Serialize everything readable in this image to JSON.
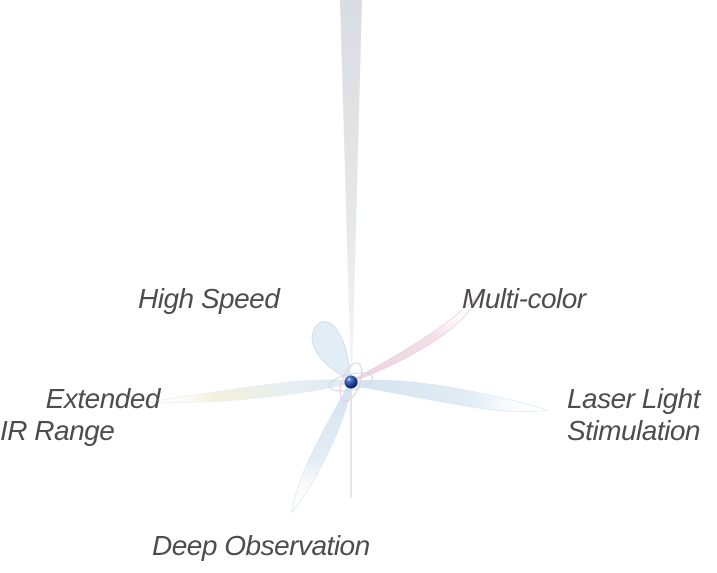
{
  "labels": {
    "high_speed": "High Speed",
    "multi_color": "Multi-color",
    "extended_ir_line1": "Extended",
    "extended_ir_line2": "IR Range",
    "laser_line1": "Laser Light",
    "laser_line2": "Stimulation",
    "deep_observation": "Deep Observation"
  },
  "colors": {
    "text": "#4d4d4d",
    "beam": "#dfe2e6",
    "petal_blue": "#d6e6f2",
    "petal_pink": "#f1d9e4",
    "petal_yellow": "#f4eed0",
    "center_sphere": "#1f3f8f"
  }
}
